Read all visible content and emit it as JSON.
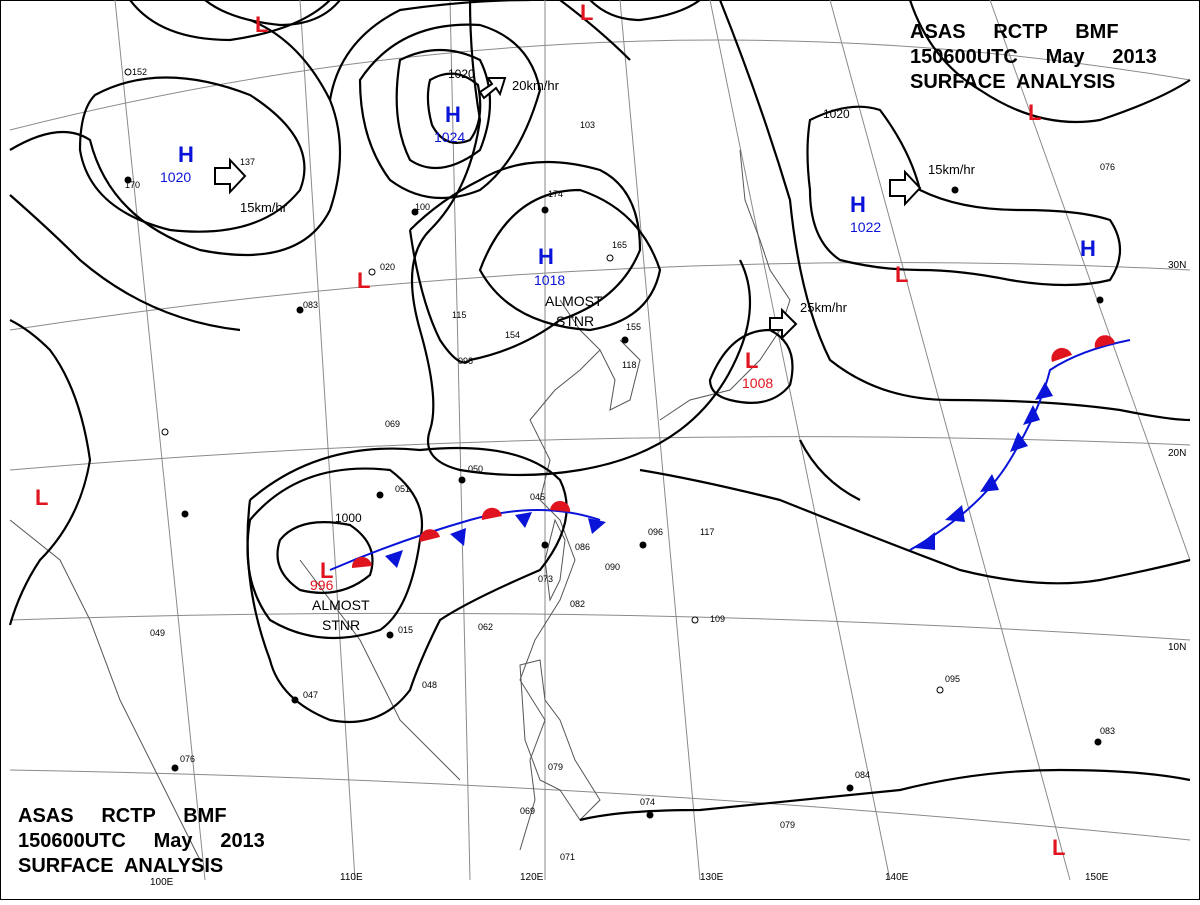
{
  "header": {
    "line1": "ASAS     RCTP     BMF",
    "line2": "150600UTC     May     2013",
    "line3": "SURFACE  ANALYSIS"
  },
  "lat_labels": [
    "30N",
    "20N",
    "10N"
  ],
  "lon_labels": [
    "110E",
    "120E",
    "130E",
    "140E",
    "150E"
  ],
  "lon_label_partial": "100E",
  "highs": [
    {
      "id": "h1",
      "letter": "H",
      "value": "1020"
    },
    {
      "id": "h2",
      "letter": "H",
      "value": "1024"
    },
    {
      "id": "h3",
      "letter": "H",
      "value": "1018"
    },
    {
      "id": "h4",
      "letter": "H",
      "value": "1022"
    },
    {
      "id": "h5",
      "letter": "H",
      "value": ""
    }
  ],
  "lows": [
    {
      "id": "l1",
      "letter": "L",
      "value": ""
    },
    {
      "id": "l2",
      "letter": "L",
      "value": ""
    },
    {
      "id": "l3",
      "letter": "L",
      "value": ""
    },
    {
      "id": "l4",
      "letter": "L",
      "value": "996"
    },
    {
      "id": "l5",
      "letter": "L",
      "value": "1008"
    },
    {
      "id": "l6",
      "letter": "L",
      "value": ""
    },
    {
      "id": "l7",
      "letter": "L",
      "value": ""
    },
    {
      "id": "l8",
      "letter": "L",
      "value": ""
    },
    {
      "id": "l9",
      "letter": "L",
      "value": ""
    }
  ],
  "isobar_labels": [
    "1020",
    "1000",
    "1020"
  ],
  "motion_labels": [
    "20km/hr",
    "15km/hr",
    "15km/hr",
    "25km/hr"
  ],
  "annotations": [
    "ALMOST",
    "STNR",
    "ALMOST",
    "STNR"
  ],
  "station_samples": [
    "152",
    "137",
    "170",
    "100",
    "020",
    "083",
    "115",
    "154",
    "174",
    "165",
    "103",
    "155",
    "118",
    "098",
    "069",
    "050",
    "051",
    "045",
    "082",
    "096",
    "117",
    "086",
    "073",
    "090",
    "062",
    "015",
    "047",
    "048",
    "109",
    "095",
    "084",
    "083",
    "076",
    "079",
    "069",
    "071",
    "074",
    "079",
    "049",
    "076"
  ],
  "colors": {
    "high": "#0a14d8",
    "low": "#e0141e",
    "isobar": "#000000",
    "geography": "#555555",
    "grid": "#888888"
  }
}
